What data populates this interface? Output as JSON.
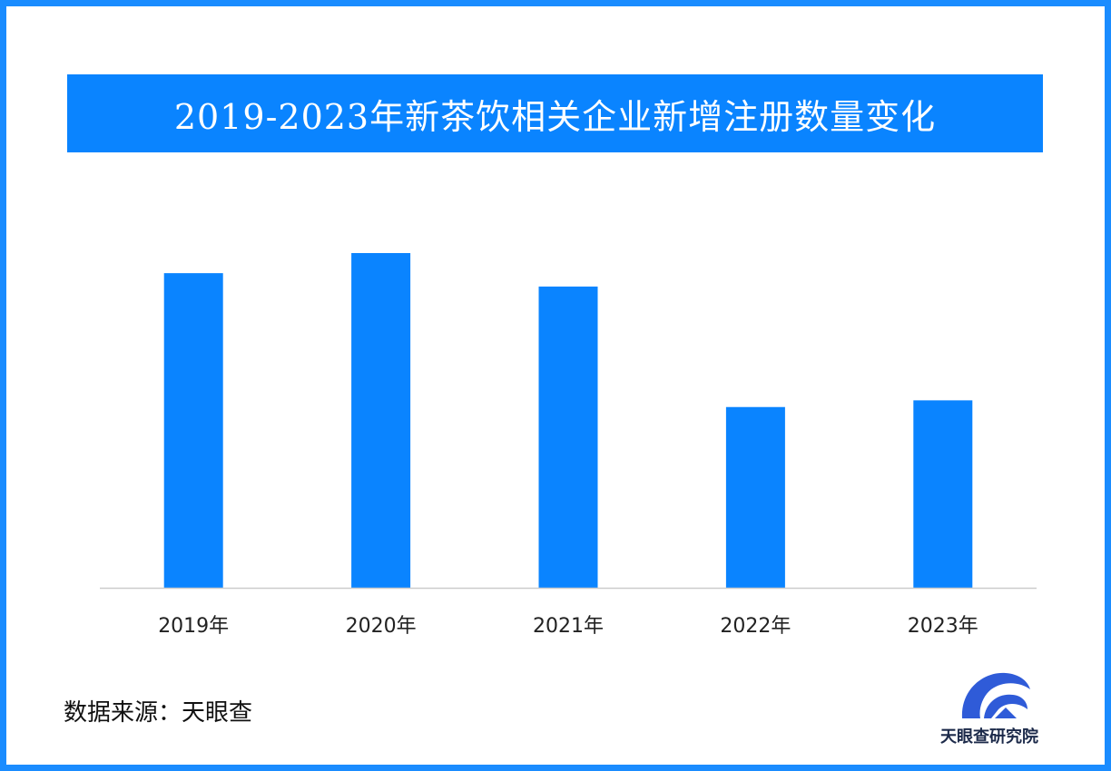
{
  "chart_data": {
    "type": "bar",
    "title": "2019-2023年新茶饮相关企业新增注册数量变化",
    "categories": [
      "2019年",
      "2020年",
      "2021年",
      "2022年",
      "2023年"
    ],
    "values": [
      94,
      100,
      90,
      54,
      56
    ],
    "xlabel": "",
    "ylabel": "",
    "ylim": [
      0,
      100
    ],
    "grid": false,
    "legend": "none",
    "bar_color": "#0a84ff",
    "axis_color": "#cccccc"
  },
  "source": "数据来源：天眼查",
  "logo": {
    "text": "天眼查研究院",
    "icon": "tianyancha-logo",
    "color": "#2f5bd8"
  },
  "frame_color": "#1a8cff"
}
